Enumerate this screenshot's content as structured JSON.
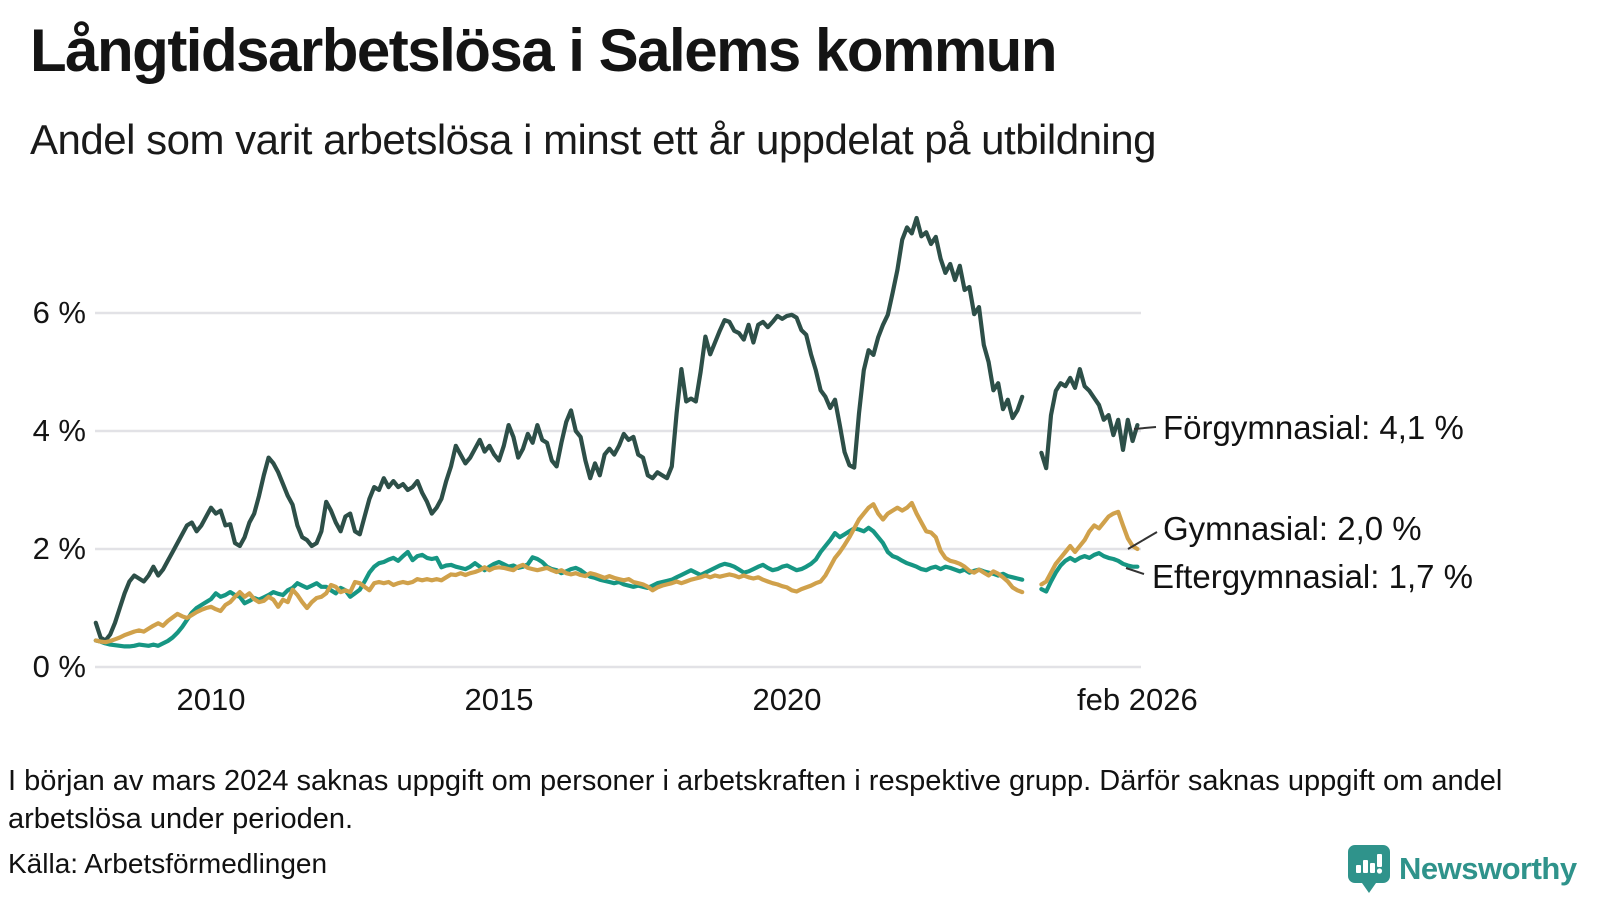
{
  "header": {
    "title": "Långtidsarbetslösa i Salems kommun",
    "subtitle": "Andel som varit arbetslösa i minst ett år uppdelat på utbildning"
  },
  "footer": {
    "note": "I början av mars 2024 saknas uppgift om personer i arbetskraften i respektive grupp. Därför saknas uppgift om andel arbetslösa under perioden.",
    "source": "Källa: Arbetsförmedlingen"
  },
  "branding": {
    "name": "Newsworthy",
    "color": "#2f938b"
  },
  "chart_data": {
    "type": "line",
    "title": "Långtidsarbetslösa i Salems kommun",
    "subtitle": "Andel som varit arbetslösa i minst ett år uppdelat på utbildning",
    "unit": "%",
    "frequency": "monthly",
    "start": "2008-01",
    "end": "2026-02",
    "gap": "2024-03 to 2024-05 (data missing)",
    "grid_color": "#e2e2e6",
    "y_axis": {
      "range": [
        0,
        7.9
      ],
      "ticks": [
        {
          "label": "0 %",
          "value": 0
        },
        {
          "label": "2 %",
          "value": 2
        },
        {
          "label": "4 %",
          "value": 4
        },
        {
          "label": "6 %",
          "value": 6
        }
      ]
    },
    "x_axis": {
      "range_years": [
        2008.0,
        2026.33
      ],
      "ticks": [
        {
          "label": "2010",
          "t": 2010
        },
        {
          "label": "2015",
          "t": 2015
        },
        {
          "label": "2020",
          "t": 2020
        },
        {
          "label": "feb 2026",
          "t": 2026.083
        }
      ]
    },
    "series": [
      {
        "id": "forgymnasial",
        "name": "Förgymnasial",
        "annotation": "Förgymnasial: 4,1 %",
        "end_value": "4,1 %",
        "color": "#2d4f48",
        "start_year": 2008,
        "values": [
          0.75,
          0.5,
          0.45,
          0.55,
          0.75,
          1.0,
          1.25,
          1.45,
          1.55,
          1.5,
          1.45,
          1.55,
          1.7,
          1.55,
          1.65,
          1.8,
          1.95,
          2.1,
          2.25,
          2.4,
          2.45,
          2.3,
          2.4,
          2.55,
          2.7,
          2.6,
          2.65,
          2.4,
          2.42,
          2.1,
          2.05,
          2.2,
          2.45,
          2.6,
          2.9,
          3.25,
          3.55,
          3.45,
          3.3,
          3.1,
          2.9,
          2.75,
          2.4,
          2.2,
          2.15,
          2.05,
          2.1,
          2.3,
          2.8,
          2.65,
          2.45,
          2.3,
          2.55,
          2.6,
          2.3,
          2.25,
          2.55,
          2.85,
          3.05,
          3.0,
          3.2,
          3.05,
          3.15,
          3.05,
          3.1,
          3.0,
          3.05,
          3.15,
          2.95,
          2.8,
          2.6,
          2.7,
          2.85,
          3.15,
          3.4,
          3.75,
          3.6,
          3.45,
          3.55,
          3.7,
          3.85,
          3.65,
          3.75,
          3.6,
          3.5,
          3.75,
          4.1,
          3.9,
          3.55,
          3.7,
          3.95,
          3.8,
          4.1,
          3.85,
          3.8,
          3.5,
          3.4,
          3.8,
          4.15,
          4.35,
          4.0,
          3.9,
          3.5,
          3.2,
          3.45,
          3.25,
          3.6,
          3.7,
          3.6,
          3.75,
          3.95,
          3.85,
          3.9,
          3.6,
          3.55,
          3.25,
          3.2,
          3.3,
          3.25,
          3.2,
          3.4,
          4.3,
          5.05,
          4.5,
          4.55,
          4.5,
          5.0,
          5.6,
          5.3,
          5.5,
          5.7,
          5.88,
          5.85,
          5.7,
          5.66,
          5.55,
          5.8,
          5.5,
          5.8,
          5.85,
          5.76,
          5.85,
          5.95,
          5.9,
          5.95,
          5.97,
          5.92,
          5.71,
          5.63,
          5.3,
          5.03,
          4.69,
          4.58,
          4.39,
          4.53,
          4.1,
          3.64,
          3.42,
          3.38,
          4.3,
          5.03,
          5.37,
          5.29,
          5.59,
          5.8,
          5.97,
          6.34,
          6.73,
          7.24,
          7.45,
          7.35,
          7.61,
          7.3,
          7.37,
          7.17,
          7.29,
          6.92,
          6.68,
          6.83,
          6.56,
          6.8,
          6.39,
          6.44,
          5.98,
          6.1,
          5.46,
          5.17,
          4.69,
          4.81,
          4.37,
          4.53,
          4.22,
          4.35,
          4.58,
          null,
          null,
          null,
          3.63,
          3.37,
          4.27,
          4.68,
          4.81,
          4.76,
          4.9,
          4.73,
          5.05,
          4.76,
          4.68,
          4.56,
          4.44,
          4.19,
          4.27,
          3.93,
          4.19,
          3.68,
          4.19,
          3.83,
          4.1
        ]
      },
      {
        "id": "eftergymnasial",
        "name": "Eftergymnasial",
        "annotation": "Eftergymnasial: 1,7 %",
        "end_value": "1,7 %",
        "color": "#169683",
        "start_year": 2008,
        "values": [
          0.45,
          0.43,
          0.4,
          0.38,
          0.37,
          0.36,
          0.35,
          0.35,
          0.36,
          0.38,
          0.37,
          0.36,
          0.38,
          0.36,
          0.4,
          0.44,
          0.5,
          0.58,
          0.68,
          0.8,
          0.92,
          1.0,
          1.05,
          1.1,
          1.15,
          1.25,
          1.19,
          1.22,
          1.27,
          1.22,
          1.19,
          1.08,
          1.12,
          1.17,
          1.14,
          1.18,
          1.22,
          1.27,
          1.24,
          1.22,
          1.3,
          1.34,
          1.42,
          1.38,
          1.34,
          1.38,
          1.42,
          1.36,
          1.36,
          1.3,
          1.25,
          1.34,
          1.3,
          1.19,
          1.25,
          1.31,
          1.45,
          1.6,
          1.7,
          1.76,
          1.78,
          1.82,
          1.85,
          1.8,
          1.88,
          1.95,
          1.81,
          1.88,
          1.9,
          1.85,
          1.83,
          1.85,
          1.69,
          1.72,
          1.73,
          1.7,
          1.68,
          1.66,
          1.7,
          1.76,
          1.7,
          1.64,
          1.7,
          1.75,
          1.78,
          1.74,
          1.7,
          1.72,
          1.68,
          1.7,
          1.74,
          1.86,
          1.83,
          1.78,
          1.7,
          1.66,
          1.64,
          1.59,
          1.62,
          1.66,
          1.68,
          1.64,
          1.58,
          1.53,
          1.51,
          1.48,
          1.46,
          1.44,
          1.42,
          1.44,
          1.4,
          1.38,
          1.36,
          1.38,
          1.36,
          1.34,
          1.38,
          1.42,
          1.44,
          1.46,
          1.48,
          1.52,
          1.56,
          1.6,
          1.64,
          1.6,
          1.56,
          1.6,
          1.64,
          1.68,
          1.72,
          1.75,
          1.73,
          1.7,
          1.65,
          1.6,
          1.62,
          1.66,
          1.7,
          1.73,
          1.68,
          1.64,
          1.66,
          1.7,
          1.72,
          1.68,
          1.64,
          1.66,
          1.7,
          1.75,
          1.82,
          1.95,
          2.05,
          2.15,
          2.27,
          2.2,
          2.25,
          2.3,
          2.35,
          2.33,
          2.3,
          2.36,
          2.3,
          2.2,
          2.1,
          1.95,
          1.88,
          1.85,
          1.8,
          1.76,
          1.73,
          1.7,
          1.66,
          1.64,
          1.68,
          1.7,
          1.66,
          1.7,
          1.68,
          1.65,
          1.62,
          1.65,
          1.6,
          1.63,
          1.65,
          1.62,
          1.6,
          1.58,
          1.55,
          1.58,
          1.54,
          1.52,
          1.5,
          1.48,
          null,
          null,
          null,
          1.32,
          1.28,
          1.45,
          1.6,
          1.72,
          1.8,
          1.85,
          1.8,
          1.85,
          1.88,
          1.85,
          1.9,
          1.93,
          1.88,
          1.85,
          1.83,
          1.8,
          1.75,
          1.72,
          1.7,
          1.7
        ]
      },
      {
        "id": "gymnasial",
        "name": "Gymnasial",
        "annotation": "Gymnasial: 2,0 %",
        "end_value": "2,0 %",
        "color": "#d0a14b",
        "start_year": 2008,
        "values": [
          0.45,
          0.43,
          0.42,
          0.44,
          0.47,
          0.5,
          0.54,
          0.57,
          0.6,
          0.62,
          0.6,
          0.65,
          0.7,
          0.74,
          0.7,
          0.78,
          0.84,
          0.9,
          0.86,
          0.83,
          0.88,
          0.93,
          0.97,
          1.0,
          1.02,
          0.98,
          0.95,
          1.05,
          1.1,
          1.19,
          1.27,
          1.19,
          1.25,
          1.15,
          1.1,
          1.12,
          1.19,
          1.14,
          1.02,
          1.14,
          1.1,
          1.31,
          1.22,
          1.1,
          1.0,
          1.1,
          1.17,
          1.19,
          1.25,
          1.39,
          1.36,
          1.27,
          1.3,
          1.27,
          1.44,
          1.42,
          1.36,
          1.3,
          1.42,
          1.44,
          1.42,
          1.44,
          1.39,
          1.42,
          1.44,
          1.42,
          1.44,
          1.49,
          1.47,
          1.49,
          1.47,
          1.49,
          1.47,
          1.52,
          1.57,
          1.56,
          1.59,
          1.56,
          1.59,
          1.61,
          1.64,
          1.69,
          1.64,
          1.68,
          1.69,
          1.68,
          1.66,
          1.64,
          1.7,
          1.73,
          1.68,
          1.66,
          1.64,
          1.66,
          1.68,
          1.64,
          1.61,
          1.64,
          1.59,
          1.57,
          1.59,
          1.56,
          1.54,
          1.59,
          1.57,
          1.54,
          1.51,
          1.54,
          1.51,
          1.49,
          1.47,
          1.49,
          1.44,
          1.42,
          1.4,
          1.36,
          1.3,
          1.35,
          1.38,
          1.4,
          1.42,
          1.45,
          1.42,
          1.45,
          1.48,
          1.5,
          1.52,
          1.55,
          1.52,
          1.55,
          1.53,
          1.55,
          1.57,
          1.55,
          1.52,
          1.55,
          1.52,
          1.5,
          1.52,
          1.48,
          1.45,
          1.42,
          1.4,
          1.37,
          1.35,
          1.3,
          1.28,
          1.32,
          1.35,
          1.38,
          1.42,
          1.45,
          1.55,
          1.7,
          1.85,
          1.95,
          2.07,
          2.2,
          2.35,
          2.5,
          2.6,
          2.7,
          2.76,
          2.6,
          2.5,
          2.6,
          2.65,
          2.7,
          2.65,
          2.7,
          2.78,
          2.6,
          2.45,
          2.3,
          2.28,
          2.2,
          1.97,
          1.85,
          1.8,
          1.78,
          1.75,
          1.7,
          1.63,
          1.6,
          1.65,
          1.6,
          1.55,
          1.62,
          1.58,
          1.52,
          1.45,
          1.35,
          1.3,
          1.27,
          null,
          null,
          null,
          1.4,
          1.45,
          1.6,
          1.75,
          1.85,
          1.95,
          2.05,
          1.95,
          2.05,
          2.15,
          2.3,
          2.4,
          2.35,
          2.45,
          2.55,
          2.6,
          2.63,
          2.4,
          2.18,
          2.05,
          2.0
        ]
      }
    ]
  }
}
